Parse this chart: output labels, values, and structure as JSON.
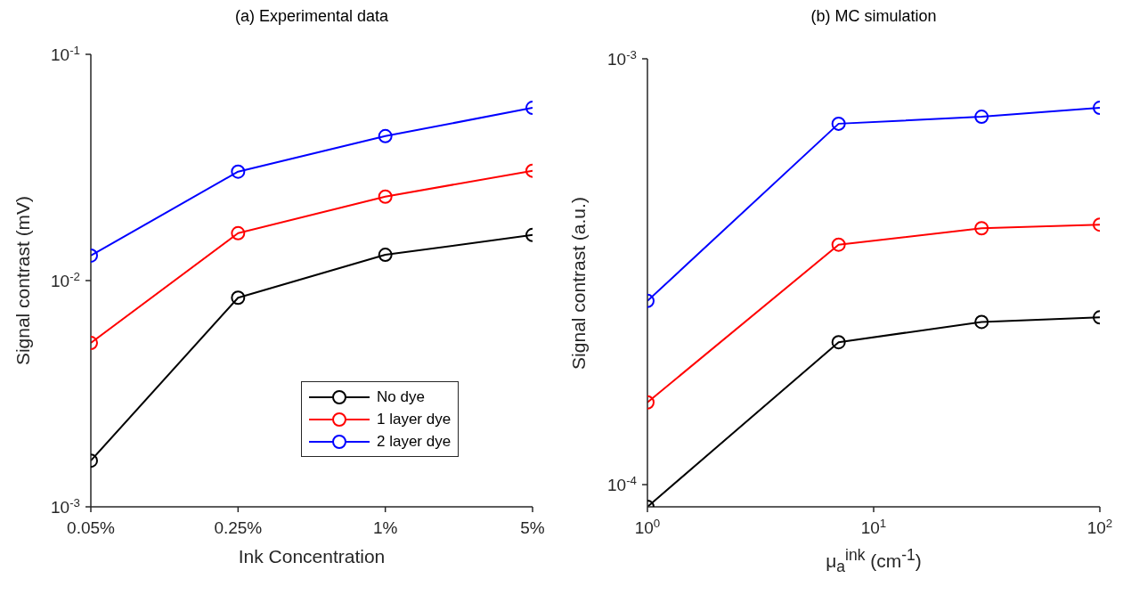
{
  "chart_data": [
    {
      "type": "line",
      "title": "(a) Experimental data",
      "xlabel": "Ink Concentration",
      "ylabel": "Signal contrast (mV)",
      "categories": [
        "0.05%",
        "0.25%",
        "1%",
        "5%"
      ],
      "ylim": [
        0.001,
        0.1
      ],
      "yticks": [
        {
          "value": 0.001,
          "label": "10$^{-3}$"
        },
        {
          "value": 0.01,
          "label": "10$^{-2}$"
        },
        {
          "value": 0.1,
          "label": "10$^{-1}$"
        }
      ],
      "log": "y",
      "marker": "circle",
      "legend": "bottom right",
      "series": [
        {
          "name": "No dye",
          "color": "#000000",
          "values": [
            0.0016,
            0.0084,
            0.013,
            0.0159
          ]
        },
        {
          "name": "1 layer dye",
          "color": "#ff0000",
          "values": [
            0.0053,
            0.0162,
            0.0235,
            0.0306
          ]
        },
        {
          "name": "2 layer dye",
          "color": "#0000ff",
          "values": [
            0.0129,
            0.0303,
            0.0435,
            0.058
          ]
        }
      ]
    },
    {
      "type": "line",
      "title": "(b) MC simulation",
      "xlabel": "μ$_{a}$$^{ink}$ (cm$^{-1}$)",
      "ylabel": "Signal contrast (a.u.)",
      "x": [
        1,
        7,
        30,
        100
      ],
      "xlim": [
        1,
        100
      ],
      "xticks": [
        {
          "value": 1,
          "label": "10$^{0}$"
        },
        {
          "value": 10,
          "label": "10$^{1}$"
        },
        {
          "value": 100,
          "label": "10$^{2}$"
        }
      ],
      "ylim": [
        8.87e-05,
        0.001
      ],
      "yticks": [
        {
          "value": 0.0001,
          "label": "10$^{-4}$"
        },
        {
          "value": 0.001,
          "label": "10$^{-3}$"
        }
      ],
      "log": "xy",
      "marker": "circle",
      "series": [
        {
          "color": "#000000",
          "values": [
            8.87e-05,
            0.000216,
            0.000241,
            0.000247
          ]
        },
        {
          "color": "#ff0000",
          "values": [
            0.000156,
            0.000366,
            0.0004,
            0.000408
          ]
        },
        {
          "color": "#0000ff",
          "values": [
            0.00027,
            0.000704,
            0.000731,
            0.000767
          ]
        }
      ]
    }
  ]
}
